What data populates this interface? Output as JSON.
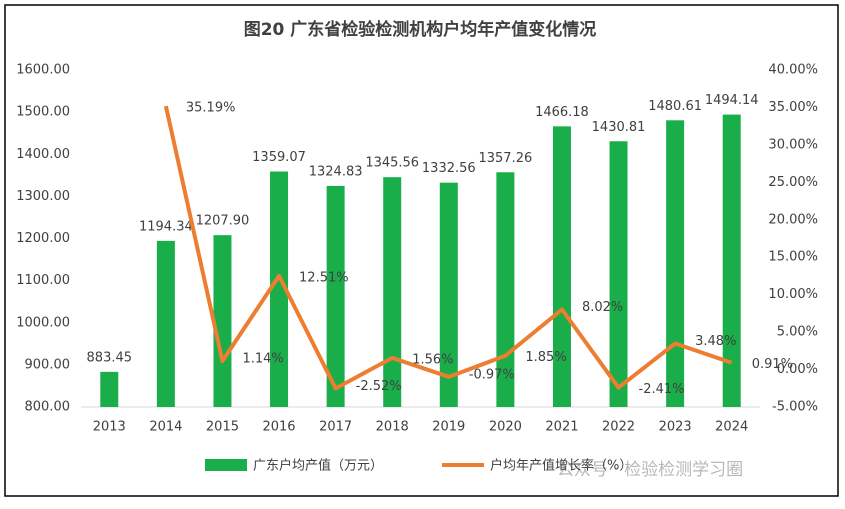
{
  "chart_data": {
    "type": "bar_line",
    "title": "图20 广东省检验检测机构户均年产值变化情况",
    "categories": [
      "2013",
      "2014",
      "2015",
      "2016",
      "2017",
      "2018",
      "2019",
      "2020",
      "2021",
      "2022",
      "2023",
      "2024"
    ],
    "series": [
      {
        "name": "广东户均产值（万元）",
        "type": "bar",
        "color": "#1aae4a",
        "values": [
          883.45,
          1194.34,
          1207.9,
          1359.07,
          1324.83,
          1345.56,
          1332.56,
          1357.26,
          1466.18,
          1430.81,
          1480.61,
          1494.14
        ],
        "value_labels": [
          "883.45",
          "1194.34",
          "1207.90",
          "1359.07",
          "1324.83",
          "1345.56",
          "1332.56",
          "1357.26",
          "1466.18",
          "1430.81",
          "1480.61",
          "1494.14"
        ]
      },
      {
        "name": "户均年产值增长率（%）",
        "type": "line",
        "axis": "y2",
        "color": "#ed7d31",
        "values": [
          null,
          35.19,
          1.14,
          12.51,
          -2.52,
          1.56,
          -0.97,
          1.85,
          8.02,
          -2.41,
          3.48,
          0.91
        ],
        "value_labels": [
          null,
          "35.19%",
          "1.14%",
          "12.51%",
          "-2.52%",
          "1.56%",
          "-0.97%",
          "1.85%",
          "8.02%",
          "-2.41%",
          "3.48%",
          "0.91%"
        ]
      }
    ],
    "ylim": [
      800,
      1600
    ],
    "yticks": [
      {
        "value": 800,
        "label": "800.00"
      },
      {
        "value": 900,
        "label": "900.00"
      },
      {
        "value": 1000,
        "label": "1000.00"
      },
      {
        "value": 1100,
        "label": "1100.00"
      },
      {
        "value": 1200,
        "label": "1200.00"
      },
      {
        "value": 1300,
        "label": "1300.00"
      },
      {
        "value": 1400,
        "label": "1400.00"
      },
      {
        "value": 1500,
        "label": "1500.00"
      },
      {
        "value": 1600,
        "label": "1600.00"
      }
    ],
    "y2lim": [
      -5,
      40
    ],
    "y2ticks": [
      {
        "value": -5,
        "label": "-5.00%"
      },
      {
        "value": 0,
        "label": "0.00%"
      },
      {
        "value": 5,
        "label": "5.00%"
      },
      {
        "value": 10,
        "label": "10.00%"
      },
      {
        "value": 15,
        "label": "15.00%"
      },
      {
        "value": 20,
        "label": "20.00%"
      },
      {
        "value": 25,
        "label": "25.00%"
      },
      {
        "value": 30,
        "label": "30.00%"
      },
      {
        "value": 35,
        "label": "35.00%"
      },
      {
        "value": 40,
        "label": "40.00%"
      }
    ],
    "legend": "bottom",
    "watermark": "公众号 · 检验检测学习圈"
  }
}
